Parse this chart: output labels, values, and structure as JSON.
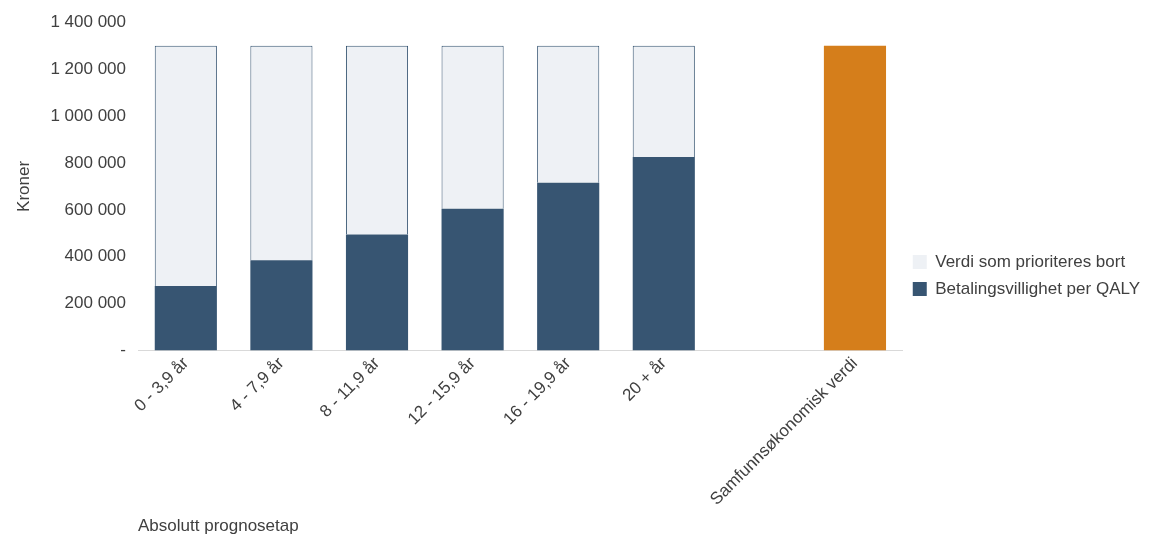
{
  "chart_data": {
    "type": "bar",
    "stacked": true,
    "xlabel": "Absolutt prognosetap",
    "ylabel": "Kroner",
    "categories": [
      "0 - 3,9 år",
      "4 - 7,9 år",
      "8 - 11,9 år",
      "12 - 15,9 år",
      "16 - 19,9 år",
      "20 + år",
      null,
      "Samfunnsøkonomisk verdi"
    ],
    "series": [
      {
        "name": "Betalingsvillighet per QALY",
        "color": "#375572",
        "values": [
          275000,
          385000,
          495000,
          605000,
          715000,
          825000,
          null,
          null
        ]
      },
      {
        "name": "Verdi som prioriteres bort",
        "color": "#eef1f5",
        "values": [
          1025000,
          915000,
          805000,
          695000,
          585000,
          475000,
          null,
          null
        ]
      },
      {
        "color": "#d57e1b",
        "values": [
          null,
          null,
          null,
          null,
          null,
          null,
          null,
          1300000
        ]
      }
    ],
    "ylim": [
      0,
      1400000
    ],
    "yticks": [
      {
        "value": 0,
        "label": "-"
      },
      {
        "value": 200000,
        "label": "200 000"
      },
      {
        "value": 400000,
        "label": "400 000"
      },
      {
        "value": 600000,
        "label": "600 000"
      },
      {
        "value": 800000,
        "label": "800 000"
      },
      {
        "value": 1000000,
        "label": "1 000 000"
      },
      {
        "value": 1200000,
        "label": "1 200 000"
      },
      {
        "value": 1400000,
        "label": "1 400 000"
      }
    ],
    "grid": false,
    "legend": "right"
  }
}
